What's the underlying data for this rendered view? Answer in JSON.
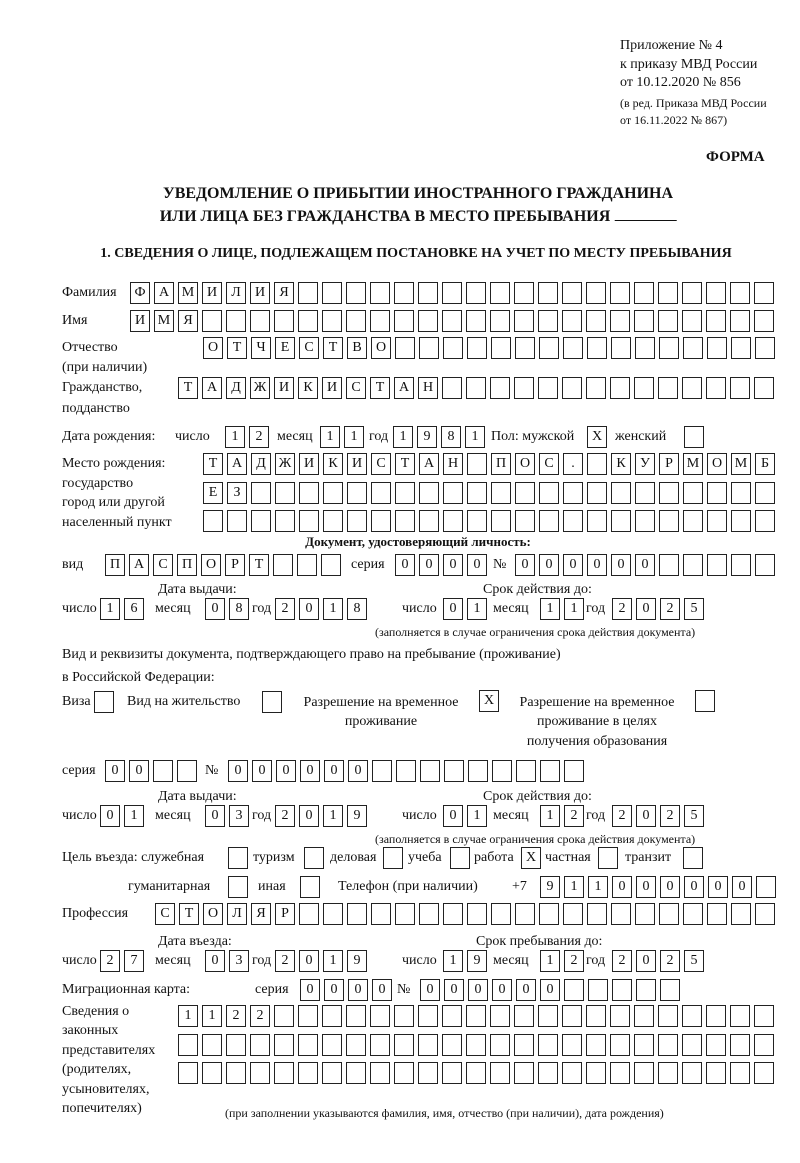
{
  "header": {
    "appendix": "Приложение № 4",
    "order": "к приказу МВД России",
    "order_date": "от 10.12.2020 № 856",
    "revision_1": "(в ред. Приказа МВД России",
    "revision_2": "от 16.11.2022 № 867)",
    "form": "ФОРМА",
    "title_1": "УВЕДОМЛЕНИЕ О ПРИБЫТИИ ИНОСТРАННОГО ГРАЖДАНИНА",
    "title_2": "ИЛИ ЛИЦА БЕЗ ГРАЖДАНСТВА В МЕСТО ПРЕБЫВАНИЯ",
    "section_1": "1. СВЕДЕНИЯ О ЛИЦЕ, ПОДЛЕЖАЩЕМ ПОСТАНОВКЕ НА УЧЕТ ПО МЕСТУ ПРЕБЫВАНИЯ"
  },
  "labels": {
    "surname": "Фамилия",
    "name": "Имя",
    "patronymic_1": "Отчество",
    "patronymic_2": "(при наличии)",
    "citizenship_1": "Гражданство,",
    "citizenship_2": "подданство",
    "birth_date": "Дата рождения:",
    "day": "число",
    "month": "месяц",
    "year": "год",
    "sex_male": "Пол: мужской",
    "sex_female": "женский",
    "birth_place_1": "Место рождения:",
    "birth_place_2": "государство",
    "birth_place_3": "город или другой",
    "birth_place_4": "населенный пункт",
    "id_doc": "Документ, удостоверяющий личность:",
    "kind": "вид",
    "series": "серия",
    "number": "№",
    "issue_date": "Дата выдачи:",
    "valid_until": "Срок действия до:",
    "valid_note": "(заполняется в случае ограничения срока действия документа)",
    "stay_doc_1": "Вид и реквизиты документа, подтверждающего право на пребывание (проживание)",
    "stay_doc_2": "в Российской Федерации:",
    "visa": "Виза",
    "residence": "Вид на жительство",
    "temp_res_1": "Разрешение на временное",
    "temp_res_2": "проживание",
    "temp_edu_1": "Разрешение на временное",
    "temp_edu_2": "проживание в целях",
    "temp_edu_3": "получения образования",
    "purpose": "Цель въезда: служебная",
    "tourism": "туризм",
    "business": "деловая",
    "study": "учеба",
    "work": "работа",
    "private": "частная",
    "transit": "транзит",
    "humanitarian": "гуманитарная",
    "other": "иная",
    "phone": "Телефон (при наличии)",
    "phone_prefix": "+7",
    "profession": "Профессия",
    "entry_date": "Дата въезда:",
    "stay_until": "Срок пребывания до:",
    "migration_card": "Миграционная карта:",
    "reps_1": "Сведения о",
    "reps_2": "законных",
    "reps_3": "представителях",
    "reps_4": "(родителях,",
    "reps_5": "усыновителях,",
    "reps_6": "попечителях)",
    "reps_note": "(при заполнении указываются фамилия, имя, отчество (при наличии), дата рождения)"
  },
  "person": {
    "surname": "ФАМИЛИЯ",
    "name": "ИМЯ",
    "patronymic": "ОТЧЕСТВО",
    "citizenship": "ТАДЖИКИСТАН",
    "birth_day": "12",
    "birth_month": "11",
    "birth_year": "1981",
    "sex_male": "X",
    "sex_female": "",
    "birth_place_1": "ТАДЖИКИСТАН ПОС. КУРМОМБ",
    "birth_place_2": "ЕЗ",
    "birth_place_3": ""
  },
  "id_document": {
    "kind": "ПАСПОРТ",
    "series": "0000",
    "number": "000000",
    "issue_day": "16",
    "issue_month": "08",
    "issue_year": "2018",
    "valid_day": "01",
    "valid_month": "11",
    "valid_year": "2025"
  },
  "stay_document": {
    "visa": "",
    "residence": "",
    "temp_residence": "X",
    "temp_residence_edu": "",
    "series": "00",
    "number": "000000",
    "issue_day": "01",
    "issue_month": "03",
    "issue_year": "2019",
    "valid_day": "01",
    "valid_month": "12",
    "valid_year": "2025"
  },
  "purpose": {
    "official": "",
    "tourism": "",
    "business": "",
    "study": "",
    "work": "X",
    "private": "",
    "transit": "",
    "humanitarian": "",
    "other": ""
  },
  "phone": "911000000",
  "profession": "СТОЛЯР",
  "entry": {
    "entry_day": "27",
    "entry_month": "03",
    "entry_year": "2019",
    "stay_day": "19",
    "stay_month": "12",
    "stay_year": "2025"
  },
  "migration_card": {
    "series": "0000",
    "number": "000000"
  },
  "representatives": {
    "line_1": "1122",
    "line_2": "",
    "line_3": ""
  }
}
